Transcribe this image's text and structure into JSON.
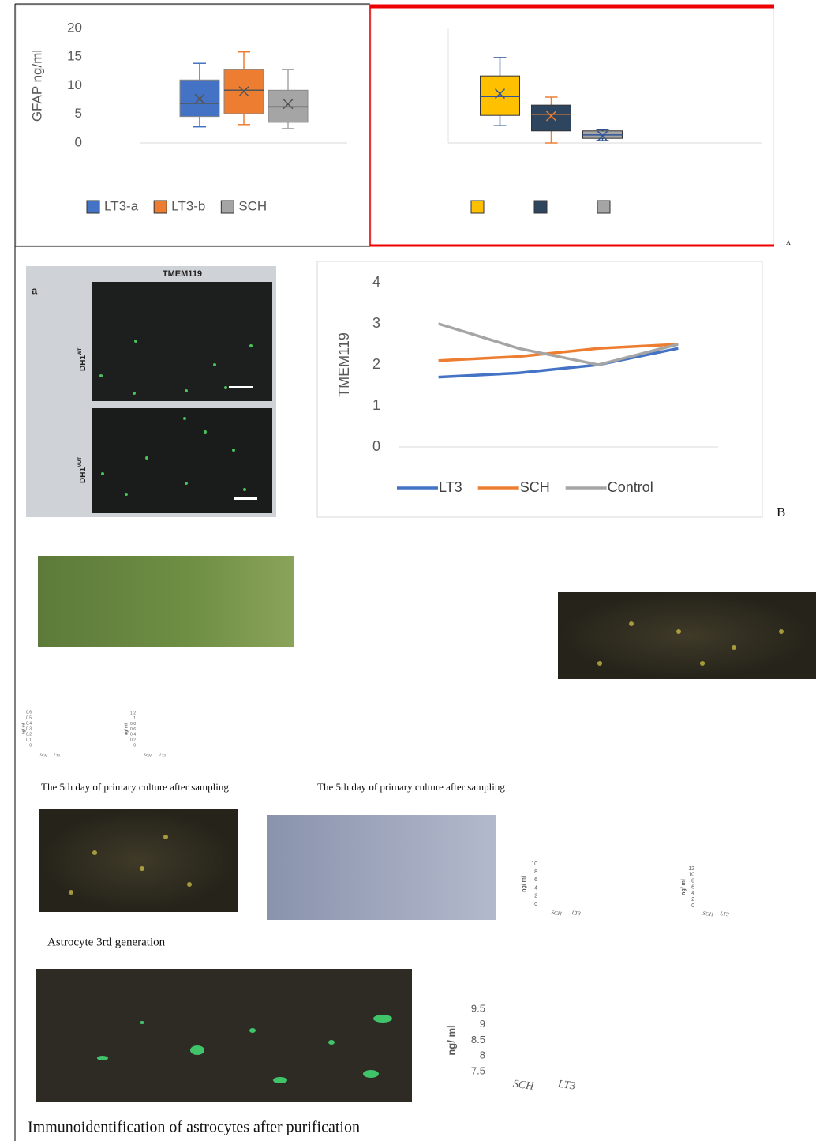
{
  "chart_data": [
    {
      "type": "box",
      "ylabel": "GFAP ng/ml",
      "ylim": [
        0,
        20
      ],
      "yticks": [
        0,
        5,
        10,
        15,
        20
      ],
      "grid": false,
      "legend": "bottom",
      "series": [
        {
          "name": "LT3-a",
          "color": "#4472c4",
          "min": 2.8,
          "q1": 4.6,
          "median": 6.9,
          "q3": 11,
          "max": 13.9,
          "mean": 7.7
        },
        {
          "name": "LT3-b",
          "color": "#ed7d31",
          "min": 3.2,
          "q1": 5.1,
          "median": 9.2,
          "q3": 12.8,
          "max": 15.9,
          "mean": 9
        },
        {
          "name": "SCH",
          "color": "#a5a5a5",
          "min": 2.5,
          "q1": 3.6,
          "median": 6.3,
          "q3": 9.2,
          "max": 12.8,
          "mean": 6.8
        }
      ]
    },
    {
      "type": "box",
      "ylim": [
        0,
        20
      ],
      "grid": false,
      "legend": "bottom",
      "series": [
        {
          "color": "#ffc000",
          "min": 3,
          "q1": 4.8,
          "median": 8.1,
          "q3": 11.7,
          "max": 14.9,
          "mean": 8.6
        },
        {
          "color": "#2e4560",
          "min": 0,
          "q1": 2.1,
          "median": 5,
          "q3": 6.6,
          "max": 8,
          "mean": 4.7
        },
        {
          "color": "#a5a5a5",
          "min": 0.4,
          "q1": 0.8,
          "median": 1.4,
          "q3": 2.1,
          "max": 2.3,
          "mean": 1.2
        }
      ]
    },
    {
      "type": "line",
      "ylabel": "TMEM119",
      "categories": [
        null,
        null,
        null,
        null
      ],
      "ylim": [
        0,
        4
      ],
      "yticks": [
        0,
        1,
        2,
        3,
        4
      ],
      "grid": false,
      "legend": "bottom",
      "series": [
        {
          "name": "LT3",
          "color": "#4472c4",
          "values": [
            1.7,
            1.8,
            2.0,
            2.4
          ]
        },
        {
          "name": "SCH",
          "color": "#ed7d31",
          "values": [
            2.1,
            2.2,
            2.4,
            2.5
          ]
        },
        {
          "name": "Control",
          "color": "#a5a5a5",
          "values": [
            3.0,
            2.4,
            2.0,
            2.5
          ]
        }
      ]
    },
    {
      "type": "bar",
      "ylabel": "ng/ ml",
      "categories": [
        "SCH",
        "LT3"
      ],
      "ylim": [
        0,
        0.6
      ],
      "yticks": [
        0,
        0.1,
        0.2,
        0.3,
        0.4,
        0.5,
        0.6
      ]
    },
    {
      "type": "bar",
      "ylabel": "ng/ ml",
      "categories": [
        "SCH",
        "LT3"
      ],
      "ylim": [
        0,
        1.2
      ],
      "yticks": [
        0,
        0.2,
        0.4,
        0.6,
        0.8,
        1,
        1.2
      ]
    },
    {
      "type": "bar",
      "ylabel": "ng/ ml",
      "categories": [
        "SCH",
        "LT3"
      ],
      "ylim": [
        0,
        10
      ],
      "yticks": [
        0,
        2,
        4,
        6,
        8,
        10
      ]
    },
    {
      "type": "bar",
      "ylabel": "ng/ ml",
      "categories": [
        "SCH",
        "LT3"
      ],
      "ylim": [
        0,
        12
      ],
      "yticks": [
        0,
        2,
        4,
        6,
        8,
        10,
        12
      ]
    },
    {
      "type": "bar",
      "ylabel": "ng/ ml",
      "categories": [
        "SCH",
        "LT3"
      ],
      "ylim": [
        7.5,
        9.5
      ],
      "yticks": [
        7.5,
        8,
        8.5,
        9,
        9.5
      ]
    }
  ],
  "document": {
    "figure_labels": [
      "A",
      "B"
    ],
    "panel": {
      "letter": "a",
      "title": "TMEM119",
      "rows": [
        {
          "label": "DH1",
          "sup": "WT"
        },
        {
          "label": "DH1",
          "sup": "MUT"
        }
      ]
    },
    "captions": [
      "The 5th day of primary culture after sampling",
      "The 5th day of primary culture after sampling",
      "Astrocyte 3rd generation",
      "Immunoidentification of astrocytes after purification"
    ]
  }
}
